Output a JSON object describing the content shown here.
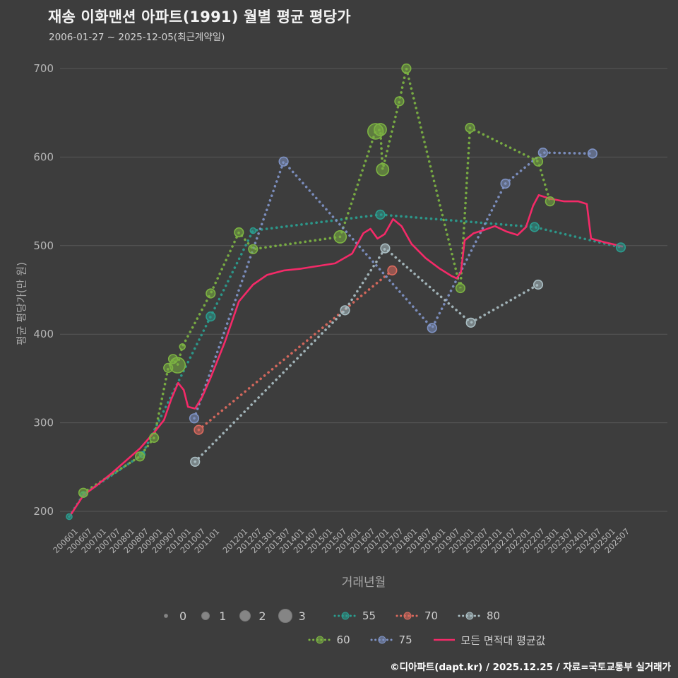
{
  "chart_data": {
    "type": "scatter",
    "title": "재송 이화맨션 아파트(1991) 월별 평균 평당가",
    "subtitle": "2006-01-27 ~ 2025-12-05(최근계약일)",
    "xlabel": "거래년월",
    "ylabel": "평균 평당가(만 원)",
    "ylim": [
      180,
      710
    ],
    "yticks": [
      200,
      300,
      400,
      500,
      600,
      700
    ],
    "background": "#3d3d3d",
    "grid_color": "#575757",
    "tick_color": "#b5b5b5",
    "axis_title_color": "#a8a8a8",
    "legend_position": "bottom",
    "grid": "horizontal-only",
    "size_legend": {
      "labels": [
        "0",
        "1",
        "2",
        "3"
      ]
    },
    "series": [
      {
        "name": "55",
        "color": "#2a9d8f",
        "points": [
          [
            2006.0,
            194,
            0
          ],
          [
            2006.5,
            219,
            0
          ],
          [
            2008.58,
            264,
            0
          ],
          [
            2011.0,
            420,
            1
          ],
          [
            2012.5,
            517,
            0
          ],
          [
            2017.0,
            535,
            1
          ],
          [
            2022.45,
            521,
            1
          ],
          [
            2025.5,
            498,
            1
          ]
        ]
      },
      {
        "name": "60",
        "color": "#7cb342",
        "points": [
          [
            2006.5,
            221,
            1
          ],
          [
            2008.5,
            262,
            1
          ],
          [
            2009.0,
            283,
            1
          ],
          [
            2009.5,
            362,
            1
          ],
          [
            2009.67,
            372,
            1
          ],
          [
            2009.83,
            365,
            3
          ],
          [
            2010.0,
            386,
            0
          ],
          [
            2011.0,
            446,
            1
          ],
          [
            2012.0,
            515,
            1
          ],
          [
            2012.5,
            496,
            1
          ],
          [
            2015.58,
            510,
            2
          ],
          [
            2016.83,
            629,
            3
          ],
          [
            2017.0,
            631,
            2
          ],
          [
            2017.08,
            586,
            2
          ],
          [
            2017.67,
            663,
            1
          ],
          [
            2017.92,
            700,
            1
          ],
          [
            2019.83,
            452,
            1
          ],
          [
            2020.17,
            633,
            1
          ],
          [
            2022.58,
            595,
            1
          ],
          [
            2023.0,
            550,
            1
          ]
        ]
      },
      {
        "name": "70",
        "color": "#dd6a5e",
        "points": [
          [
            2010.58,
            292,
            1
          ],
          [
            2017.42,
            472,
            1
          ]
        ]
      },
      {
        "name": "75",
        "color": "#7f93c5",
        "points": [
          [
            2010.42,
            305,
            1
          ],
          [
            2013.58,
            595,
            1
          ],
          [
            2018.83,
            407,
            1
          ],
          [
            2021.42,
            570,
            1
          ],
          [
            2022.75,
            605,
            1
          ],
          [
            2024.5,
            604,
            1
          ]
        ]
      },
      {
        "name": "80",
        "color": "#a9bdc2",
        "points": [
          [
            2010.45,
            256,
            1
          ],
          [
            2015.75,
            427,
            1
          ],
          [
            2017.17,
            497,
            1
          ],
          [
            2020.2,
            413,
            1
          ],
          [
            2022.58,
            456,
            1
          ]
        ]
      }
    ],
    "avg_line": {
      "name": "모든 면적대 평균값",
      "color": "#f42a68",
      "points": [
        [
          2006.05,
          196
        ],
        [
          2006.5,
          218
        ],
        [
          2007.0,
          230
        ],
        [
          2007.5,
          243
        ],
        [
          2008.0,
          257
        ],
        [
          2008.5,
          271
        ],
        [
          2009.0,
          289
        ],
        [
          2009.35,
          303
        ],
        [
          2009.6,
          326
        ],
        [
          2009.85,
          345
        ],
        [
          2010.05,
          337
        ],
        [
          2010.2,
          318
        ],
        [
          2010.45,
          316
        ],
        [
          2010.7,
          329
        ],
        [
          2011.0,
          351
        ],
        [
          2011.5,
          391
        ],
        [
          2012.0,
          437
        ],
        [
          2012.5,
          456
        ],
        [
          2013.0,
          467
        ],
        [
          2013.6,
          472
        ],
        [
          2014.2,
          474
        ],
        [
          2014.8,
          477
        ],
        [
          2015.4,
          480
        ],
        [
          2016.0,
          491
        ],
        [
          2016.4,
          514
        ],
        [
          2016.65,
          519
        ],
        [
          2016.9,
          508
        ],
        [
          2017.15,
          513
        ],
        [
          2017.45,
          530
        ],
        [
          2017.75,
          522
        ],
        [
          2018.1,
          502
        ],
        [
          2018.6,
          486
        ],
        [
          2019.1,
          474
        ],
        [
          2019.5,
          466
        ],
        [
          2019.7,
          463
        ],
        [
          2019.85,
          470
        ],
        [
          2019.98,
          506
        ],
        [
          2020.3,
          514
        ],
        [
          2020.7,
          518
        ],
        [
          2021.05,
          522
        ],
        [
          2021.45,
          516
        ],
        [
          2021.85,
          512
        ],
        [
          2022.15,
          521
        ],
        [
          2022.4,
          545
        ],
        [
          2022.6,
          557
        ],
        [
          2023.0,
          553
        ],
        [
          2023.5,
          550
        ],
        [
          2024.0,
          550
        ],
        [
          2024.3,
          547
        ],
        [
          2024.45,
          508
        ],
        [
          2024.9,
          504
        ],
        [
          2025.3,
          501
        ],
        [
          2025.55,
          499
        ]
      ]
    },
    "xticks": [
      {
        "label": "200601",
        "t": 2006.0
      },
      {
        "label": "200607",
        "t": 2006.5
      },
      {
        "label": "200701",
        "t": 2007.0
      },
      {
        "label": "200707",
        "t": 2007.5
      },
      {
        "label": "200801",
        "t": 2008.0
      },
      {
        "label": "200807",
        "t": 2008.5
      },
      {
        "label": "200901",
        "t": 2009.0
      },
      {
        "label": "200907",
        "t": 2009.5
      },
      {
        "label": "201001",
        "t": 2010.0
      },
      {
        "label": "201007",
        "t": 2010.5
      },
      {
        "label": "201101",
        "t": 2011.0
      },
      {
        "label": "201201",
        "t": 2012.0
      },
      {
        "label": "201207",
        "t": 2012.5
      },
      {
        "label": "201301",
        "t": 2013.0
      },
      {
        "label": "201307",
        "t": 2013.5
      },
      {
        "label": "201401",
        "t": 2014.0
      },
      {
        "label": "201407",
        "t": 2014.5
      },
      {
        "label": "201501",
        "t": 2015.0
      },
      {
        "label": "201507",
        "t": 2015.5
      },
      {
        "label": "201601",
        "t": 2016.0
      },
      {
        "label": "201607",
        "t": 2016.5
      },
      {
        "label": "201701",
        "t": 2017.0
      },
      {
        "label": "201707",
        "t": 2017.5
      },
      {
        "label": "201801",
        "t": 2018.0
      },
      {
        "label": "201807",
        "t": 2018.5
      },
      {
        "label": "201901",
        "t": 2019.0
      },
      {
        "label": "201907",
        "t": 2019.5
      },
      {
        "label": "202001",
        "t": 2020.0
      },
      {
        "label": "202007",
        "t": 2020.5
      },
      {
        "label": "202101",
        "t": 2021.0
      },
      {
        "label": "202107",
        "t": 2021.5
      },
      {
        "label": "202201",
        "t": 2022.0
      },
      {
        "label": "202207",
        "t": 2022.5
      },
      {
        "label": "202301",
        "t": 2023.0
      },
      {
        "label": "202307",
        "t": 2023.5
      },
      {
        "label": "202401",
        "t": 2024.0
      },
      {
        "label": "202407",
        "t": 2024.5
      },
      {
        "label": "202501",
        "t": 2025.0
      },
      {
        "label": "202507",
        "t": 2025.5
      }
    ]
  },
  "footer": {
    "text": "©디아파트(dapt.kr) / 2025.12.25 / 자료=국토교통부 실거래가"
  }
}
